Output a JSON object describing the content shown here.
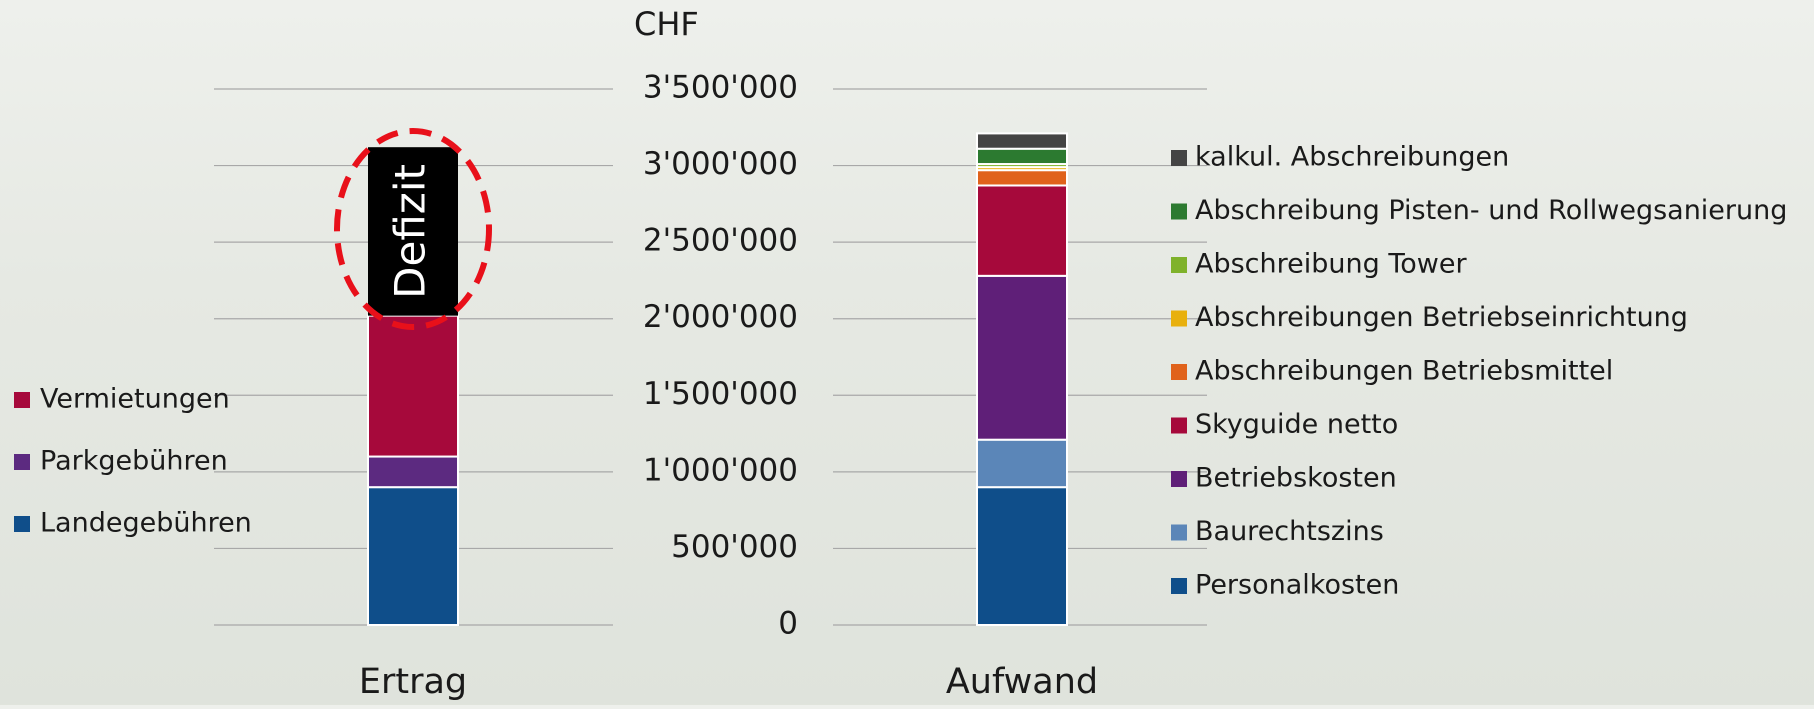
{
  "chart_data": {
    "type": "stacked-bar",
    "y_label": "CHF",
    "categories": [
      "Ertrag",
      "Aufwand"
    ],
    "ylim": [
      0,
      3500000
    ],
    "yticks": [
      0,
      {
        "value": 500000,
        "label": "500'000"
      },
      {
        "value": 1000000,
        "label": "1'000'000"
      },
      {
        "value": 1500000,
        "label": "1'500'000"
      },
      {
        "value": 2000000,
        "label": "2'000'000"
      },
      {
        "value": 2500000,
        "label": "2'500'000"
      },
      {
        "value": 3000000,
        "label": "3'000'000"
      },
      {
        "value": 3500000,
        "label": "3'500'000"
      }
    ],
    "grid": true,
    "series": [
      {
        "name": "Landegebühren",
        "color": "#0f4e8a",
        "values": [
          900000,
          null
        ]
      },
      {
        "name": "Parkgebühren",
        "color": "#5c2a80",
        "values": [
          200000,
          null
        ]
      },
      {
        "name": "Vermietungen",
        "color": "#a6093b",
        "values": [
          920000,
          null
        ]
      },
      {
        "name": "Personalkosten",
        "color": "#0f4e8a",
        "values": [
          null,
          900000
        ]
      },
      {
        "name": "Baurechtszins",
        "color": "#5b86b8",
        "values": [
          null,
          310000
        ]
      },
      {
        "name": "Betriebskosten",
        "color": "#5f1f78",
        "values": [
          null,
          1070000
        ]
      },
      {
        "name": "Skyguide netto",
        "color": "#a6093b",
        "values": [
          null,
          590000
        ]
      },
      {
        "name": "Abschreibungen Betriebsmittel",
        "color": "#e0621b",
        "values": [
          null,
          100000
        ]
      },
      {
        "name": "Abschreibungen Betriebseinrichtung",
        "color": "#e8b00e",
        "values": [
          null,
          20000
        ]
      },
      {
        "name": "Abschreibung Tower",
        "color": "#7fb22b",
        "values": [
          null,
          20000
        ]
      },
      {
        "name": "Abschreibung Pisten- und Rollwegsanierung",
        "color": "#2c7a30",
        "values": [
          null,
          100000
        ]
      },
      {
        "name": "kalkul. Abschreibungen",
        "color": "#444444",
        "values": [
          null,
          100000
        ]
      }
    ],
    "annotation": {
      "text": "Defizit",
      "category": 0,
      "value": 1100000,
      "color": "#000000"
    }
  }
}
